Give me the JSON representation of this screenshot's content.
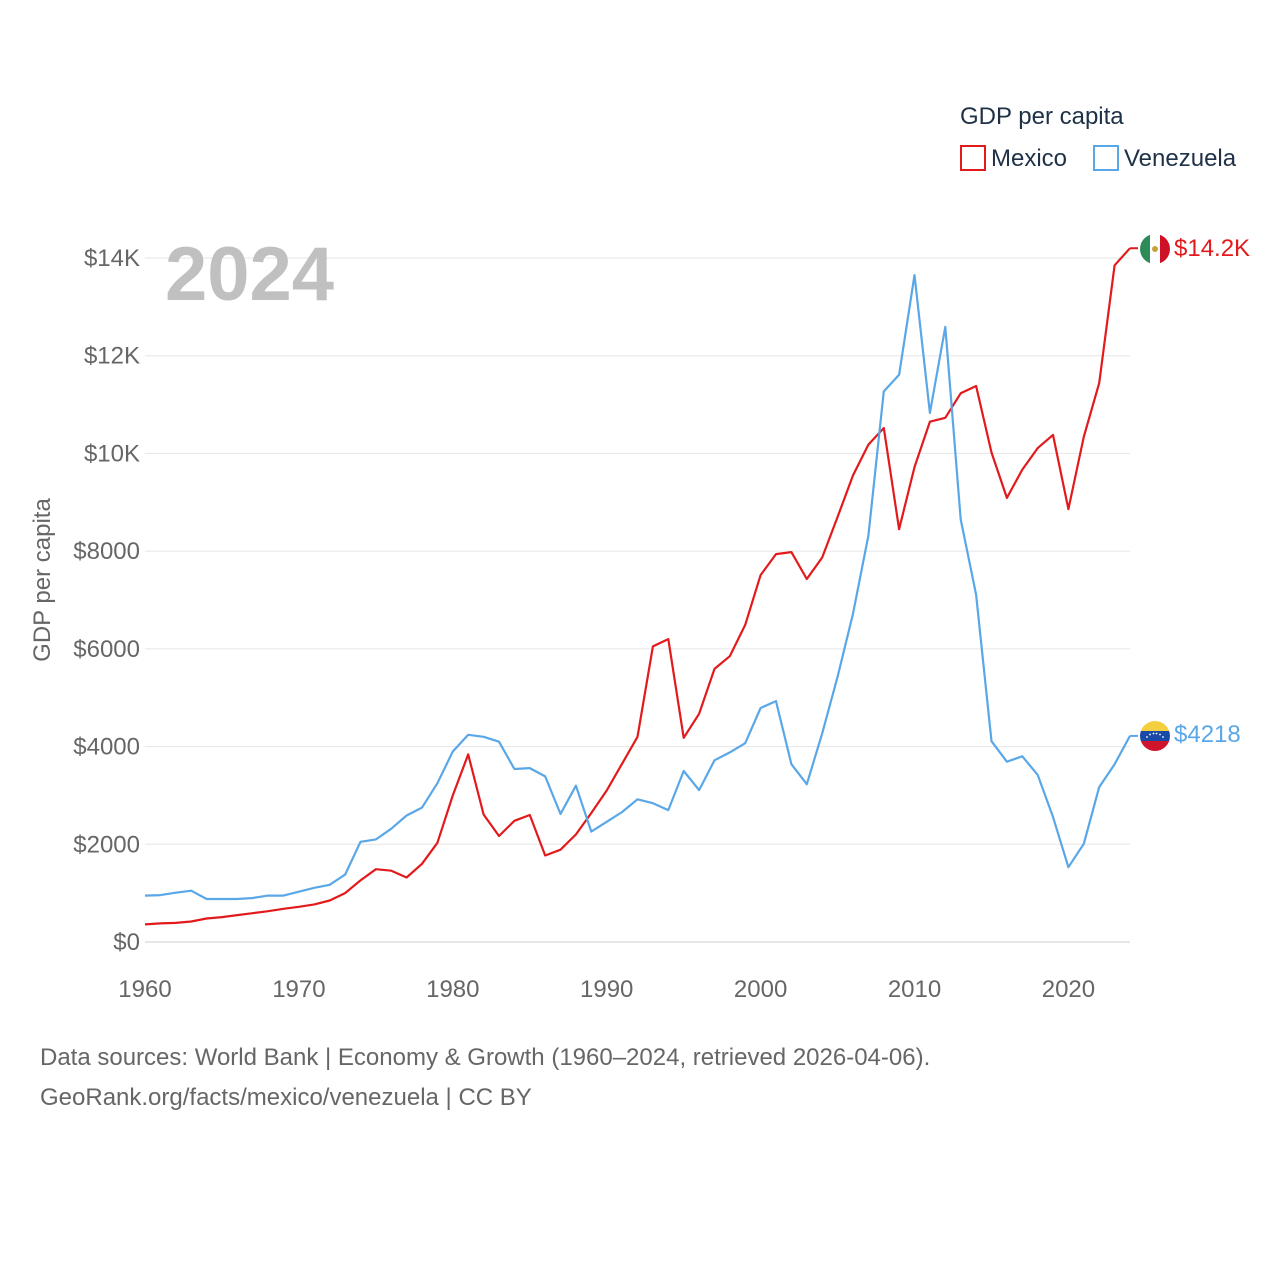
{
  "chart_data": {
    "type": "line",
    "title": "GDP per capita",
    "year_label": "2024",
    "ylabel": "GDP per capita",
    "xlabel": "",
    "xlim": [
      1960,
      2024
    ],
    "ylim": [
      0,
      14000
    ],
    "grid": true,
    "legend_position": "top-right",
    "x_ticks": [
      {
        "value": 1960,
        "label": "1960"
      },
      {
        "value": 1970,
        "label": "1970"
      },
      {
        "value": 1980,
        "label": "1980"
      },
      {
        "value": 1990,
        "label": "1990"
      },
      {
        "value": 2000,
        "label": "2000"
      },
      {
        "value": 2010,
        "label": "2010"
      },
      {
        "value": 2020,
        "label": "2020"
      }
    ],
    "y_ticks": [
      {
        "value": 0,
        "label": "$0"
      },
      {
        "value": 2000,
        "label": "$2000"
      },
      {
        "value": 4000,
        "label": "$4000"
      },
      {
        "value": 6000,
        "label": "$6000"
      },
      {
        "value": 8000,
        "label": "$8000"
      },
      {
        "value": 10000,
        "label": "$10K"
      },
      {
        "value": 12000,
        "label": "$12K"
      },
      {
        "value": 14000,
        "label": "$14K"
      }
    ],
    "x": [
      1960,
      1961,
      1962,
      1963,
      1964,
      1965,
      1966,
      1967,
      1968,
      1969,
      1970,
      1971,
      1972,
      1973,
      1974,
      1975,
      1976,
      1977,
      1978,
      1979,
      1980,
      1981,
      1982,
      1983,
      1984,
      1985,
      1986,
      1987,
      1988,
      1989,
      1990,
      1991,
      1992,
      1993,
      1994,
      1995,
      1996,
      1997,
      1998,
      1999,
      2000,
      2001,
      2002,
      2003,
      2004,
      2005,
      2006,
      2007,
      2008,
      2009,
      2010,
      2011,
      2012,
      2013,
      2014,
      2015,
      2016,
      2017,
      2018,
      2019,
      2020,
      2021,
      2022,
      2023,
      2024
    ],
    "series": [
      {
        "name": "Mexico",
        "color": "#e31a1c",
        "end_label": "$14.2K",
        "flag": "mexico-flag",
        "values": [
          360,
          380,
          390,
          420,
          480,
          510,
          550,
          590,
          630,
          680,
          720,
          770,
          850,
          1000,
          1260,
          1490,
          1460,
          1320,
          1600,
          2030,
          3000,
          3840,
          2610,
          2170,
          2480,
          2600,
          1770,
          1890,
          2200,
          2640,
          3100,
          3650,
          4200,
          6050,
          6200,
          4180,
          4670,
          5590,
          5850,
          6490,
          7510,
          7940,
          7980,
          7430,
          7870,
          8700,
          9550,
          10180,
          10520,
          8450,
          9720,
          10650,
          10730,
          11230,
          11380,
          10020,
          9090,
          9670,
          10110,
          10380,
          8860,
          10340,
          11440,
          13850,
          14200
        ]
      },
      {
        "name": "Venezuela",
        "color": "#5aa7e8",
        "end_label": "$4218",
        "flag": "venezuela-flag",
        "values": [
          950,
          960,
          1010,
          1050,
          880,
          880,
          880,
          900,
          950,
          950,
          1030,
          1110,
          1170,
          1380,
          2050,
          2100,
          2320,
          2590,
          2750,
          3250,
          3900,
          4240,
          4200,
          4100,
          3540,
          3560,
          3390,
          2620,
          3200,
          2260,
          2460,
          2660,
          2920,
          2840,
          2700,
          3500,
          3110,
          3720,
          3880,
          4070,
          4790,
          4930,
          3640,
          3230,
          4270,
          5430,
          6720,
          8320,
          11270,
          11610,
          13650,
          10830,
          12590,
          8650,
          7110,
          4110,
          3690,
          3800,
          3420,
          2560,
          1530,
          2010,
          3170,
          3640,
          4218
        ]
      }
    ]
  },
  "footer": {
    "line1": "Data sources: World Bank | Economy & Growth (1960–2024, retrieved 2026-04-06).",
    "line2": "GeoRank.org/facts/mexico/venezuela | CC BY"
  }
}
